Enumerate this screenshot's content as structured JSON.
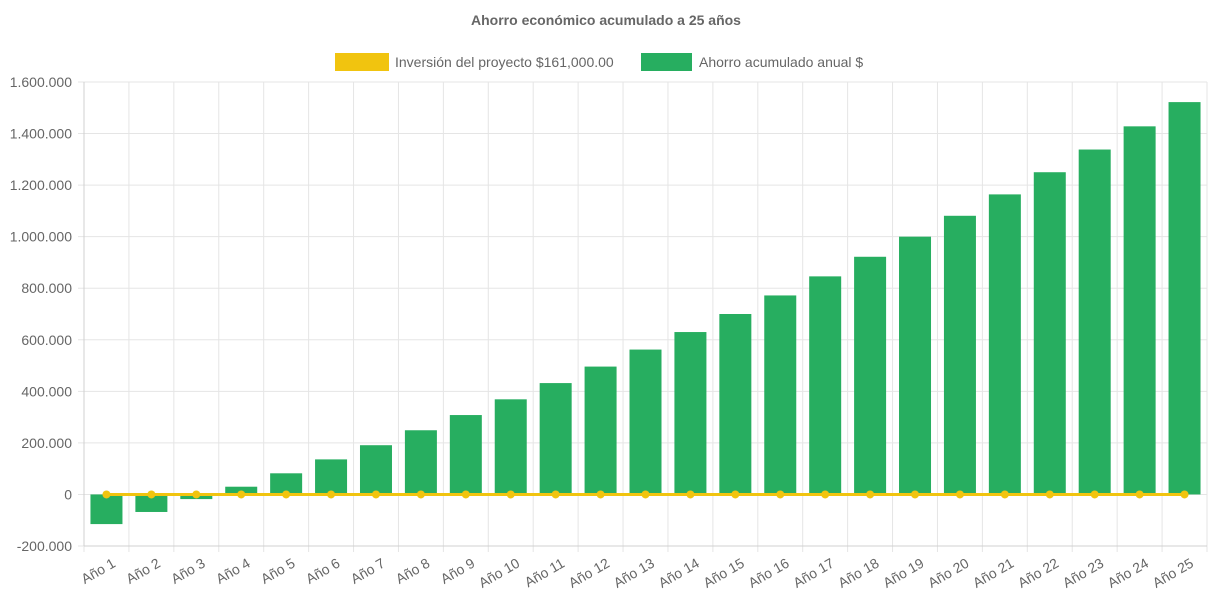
{
  "chart_data": {
    "type": "bar",
    "title": "Ahorro económico acumulado a 25 años",
    "xlabel": "",
    "ylabel": "",
    "ylim": [
      -200000,
      1600000
    ],
    "yticks": [
      1600000,
      1400000,
      1200000,
      1000000,
      800000,
      600000,
      400000,
      200000,
      0,
      -200000
    ],
    "ytick_labels": [
      "1.600.000",
      "1.400.000",
      "1.200.000",
      "1.000.000",
      "800.000",
      "600.000",
      "400.000",
      "200.000",
      "0",
      "-200.000"
    ],
    "grid": true,
    "legend_position": "top",
    "categories": [
      "Año 1",
      "Año 2",
      "Año 3",
      "Año 4",
      "Año 5",
      "Año 6",
      "Año 7",
      "Año 8",
      "Año 9",
      "Año 10",
      "Año 11",
      "Año 12",
      "Año 13",
      "Año 14",
      "Año 15",
      "Año 16",
      "Año 17",
      "Año 18",
      "Año 19",
      "Año 20",
      "Año 21",
      "Año 22",
      "Año 23",
      "Año 24",
      "Año 25"
    ],
    "series": [
      {
        "name": "Inversión del proyecto $161,000.00",
        "type": "line",
        "color": "#f1c40f",
        "values": [
          0,
          0,
          0,
          0,
          0,
          0,
          0,
          0,
          0,
          0,
          0,
          0,
          0,
          0,
          0,
          0,
          0,
          0,
          0,
          0,
          0,
          0,
          0,
          0,
          0
        ]
      },
      {
        "name": "Ahorro acumulado anual $",
        "type": "bar",
        "color": "#27ae60",
        "values": [
          -115000,
          -68000,
          -18000,
          30000,
          82000,
          136000,
          191000,
          249000,
          308000,
          369000,
          432000,
          496000,
          562000,
          630000,
          700000,
          772000,
          846000,
          922000,
          1000000,
          1081000,
          1164000,
          1250000,
          1338000,
          1428000,
          1522000
        ]
      }
    ]
  }
}
